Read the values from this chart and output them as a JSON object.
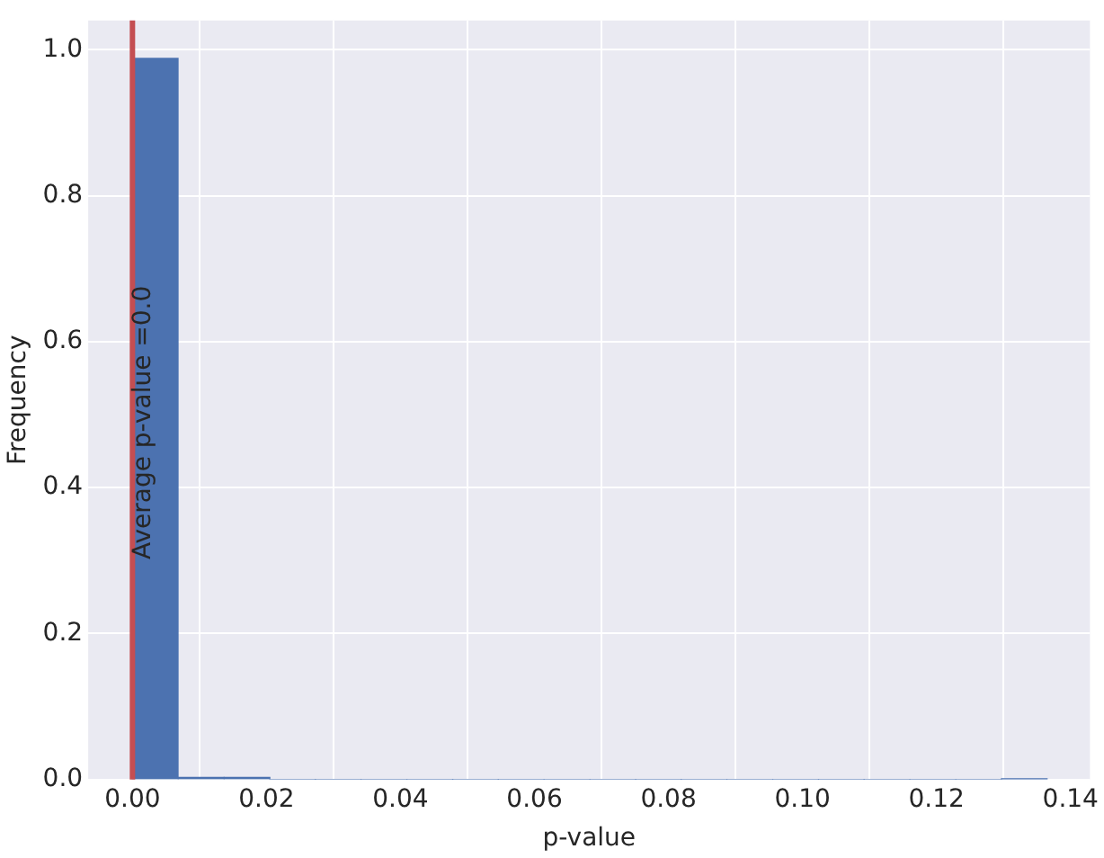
{
  "chart_data": {
    "type": "histogram",
    "xlabel": "p-value",
    "ylabel": "Frequency",
    "bins": [
      0,
      0.0068,
      0.0137,
      0.0205,
      0.0273,
      0.0341,
      0.041,
      0.0478,
      0.0546,
      0.0614,
      0.0683,
      0.0751,
      0.0819,
      0.0887,
      0.0956,
      0.1024,
      0.1092,
      0.116,
      0.1229,
      0.1297,
      0.1365
    ],
    "values": [
      0.988,
      0.003,
      0.003,
      0,
      0,
      0,
      0,
      0,
      0,
      0,
      0,
      0,
      0,
      0,
      0,
      0,
      0,
      0,
      0,
      0.001
    ],
    "color": "#4c72b0",
    "xlim": [
      -0.0066,
      0.1429
    ],
    "xticks": [
      {
        "value": 0,
        "label": "0.00"
      },
      {
        "value": 0.02,
        "label": "0.02"
      },
      {
        "value": 0.04,
        "label": "0.04"
      },
      {
        "value": 0.06,
        "label": "0.06"
      },
      {
        "value": 0.08,
        "label": "0.08"
      },
      {
        "value": 0.1,
        "label": "0.10"
      },
      {
        "value": 0.12,
        "label": "0.12"
      },
      {
        "value": 0.14,
        "label": "0.14"
      }
    ],
    "ylim": [
      0,
      1.04
    ],
    "yticks": [
      {
        "value": 0,
        "label": "0.0"
      },
      {
        "value": 0.2,
        "label": "0.2"
      },
      {
        "value": 0.4,
        "label": "0.4"
      },
      {
        "value": 0.6,
        "label": "0.6"
      },
      {
        "value": 0.8,
        "label": "0.8"
      },
      {
        "value": 1,
        "label": "1.0"
      }
    ],
    "ref_lines": [
      {
        "axis": "x",
        "value": 0,
        "label": "Average p-value =0.0",
        "color": "#c44e52"
      }
    ],
    "grid": true
  }
}
